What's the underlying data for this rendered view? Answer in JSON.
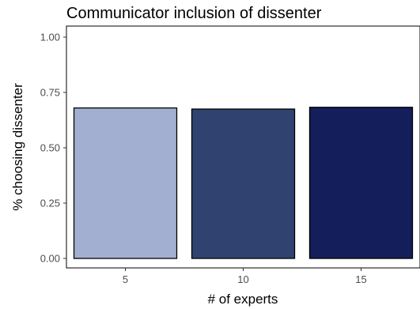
{
  "chart_data": {
    "type": "bar",
    "title": "Communicator inclusion of dissenter",
    "xlabel": "# of experts",
    "ylabel": "% choosing dissenter",
    "categories": [
      "5",
      "10",
      "15"
    ],
    "values": [
      0.68,
      0.675,
      0.683
    ],
    "ylim": [
      0,
      1.0
    ],
    "yticks": [
      "0.00",
      "0.25",
      "0.50",
      "0.75",
      "1.00"
    ],
    "bar_colors": [
      "#a3afd0",
      "#304270",
      "#141e5a"
    ],
    "grid": false,
    "legend": "none"
  }
}
